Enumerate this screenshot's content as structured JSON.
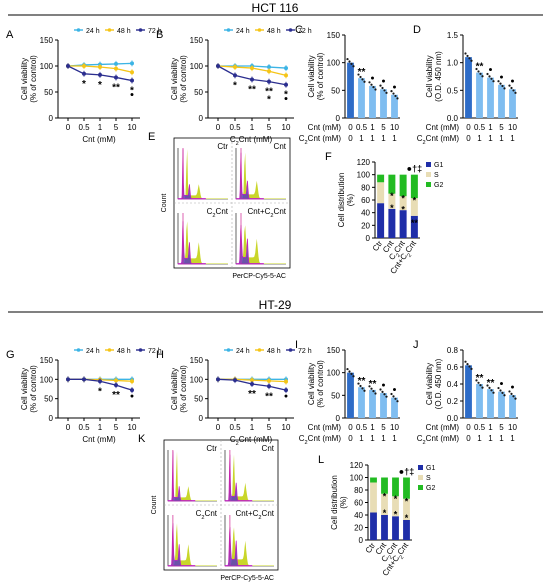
{
  "sections": [
    {
      "title": "HCT 116"
    },
    {
      "title": "HT-29"
    }
  ],
  "symbols": {
    "star": "*",
    "dstar": "**",
    "dot": "●",
    "dagger": "†",
    "ddagger": "‡"
  },
  "chart_data": [
    {
      "panel": "A",
      "type": "line",
      "title": "",
      "xlabel": "Cnt (mM)",
      "ylabel": "Cell viability (% of control)",
      "x": [
        "0",
        "0.5",
        "1",
        "5",
        "10"
      ],
      "ylim": [
        0,
        150
      ],
      "yticks": [
        0,
        50,
        100,
        150
      ],
      "series": [
        {
          "name": "24 h",
          "color": "#3cb4e5",
          "values": [
            100,
            102,
            103,
            104,
            105
          ]
        },
        {
          "name": "48 h",
          "color": "#f5c518",
          "values": [
            100,
            100,
            98,
            95,
            88
          ]
        },
        {
          "name": "72 h",
          "color": "#2b2e8f",
          "values": [
            100,
            85,
            83,
            78,
            72
          ]
        }
      ],
      "annotations": [
        {
          "x": "0.5",
          "text": "*"
        },
        {
          "x": "1",
          "text": "*"
        },
        {
          "x": "5",
          "text": "**"
        },
        {
          "x": "10",
          "text": "*"
        },
        {
          "x": "10",
          "text": "●"
        }
      ]
    },
    {
      "panel": "B",
      "type": "line",
      "title": "",
      "xlabel": "C2Cnt (mM)",
      "ylabel": "Cell viability (% of control)",
      "x": [
        "0",
        "0.5",
        "1",
        "5",
        "10"
      ],
      "ylim": [
        0,
        150
      ],
      "yticks": [
        0,
        50,
        100,
        150
      ],
      "series": [
        {
          "name": "24 h",
          "color": "#3cb4e5",
          "values": [
            100,
            100,
            100,
            98,
            96
          ]
        },
        {
          "name": "48 h",
          "color": "#f5c518",
          "values": [
            100,
            98,
            96,
            90,
            82
          ]
        },
        {
          "name": "72 h",
          "color": "#2b2e8f",
          "values": [
            100,
            82,
            74,
            70,
            64
          ]
        }
      ],
      "annotations": [
        {
          "x": "0.5",
          "text": "*"
        },
        {
          "x": "1",
          "text": "**"
        },
        {
          "x": "5",
          "text": "**"
        },
        {
          "x": "5",
          "text": "*"
        },
        {
          "x": "10",
          "text": "*"
        },
        {
          "x": "10",
          "text": "●"
        }
      ]
    },
    {
      "panel": "C",
      "type": "bar",
      "title": "",
      "ylabel": "Cell viability (% of control)",
      "row_labels": [
        "Cnt (mM)",
        "C2Cnt (mM)"
      ],
      "row_values": [
        [
          "0",
          "0.5",
          "1",
          "5",
          "10"
        ],
        [
          "0",
          "1",
          "1",
          "1",
          "1"
        ]
      ],
      "ylim": [
        0,
        150
      ],
      "yticks": [
        0,
        50,
        100,
        150
      ],
      "values": [
        100,
        72,
        58,
        52,
        42
      ],
      "annotations": [
        {
          "index": 1,
          "text": "**"
        },
        {
          "index": 2,
          "text": "●"
        },
        {
          "index": 3,
          "text": "●"
        },
        {
          "index": 4,
          "text": "●"
        }
      ]
    },
    {
      "panel": "D",
      "type": "bar",
      "title": "",
      "ylabel": "Cell viability (O.D. 450 nm)",
      "row_labels": [
        "Cnt (mM)",
        "C2Cnt (mM)"
      ],
      "row_values": [
        [
          "0",
          "0.5",
          "1",
          "5",
          "10"
        ],
        [
          "0",
          "1",
          "1",
          "1",
          "1"
        ]
      ],
      "ylim": [
        0,
        1.5
      ],
      "yticks": [
        "0.0",
        "0.5",
        "1.0",
        "1.5"
      ],
      "values": [
        1.1,
        0.82,
        0.73,
        0.6,
        0.52
      ],
      "annotations": [
        {
          "index": 1,
          "text": "**"
        },
        {
          "index": 2,
          "text": "●"
        },
        {
          "index": 3,
          "text": "●"
        },
        {
          "index": 4,
          "text": "●"
        }
      ]
    },
    {
      "panel": "E",
      "type": "histogram",
      "title": "",
      "xlabel": "PerCP-Cy5-5-AC",
      "ylabel": "Count",
      "quadrants": [
        "Ctr",
        "Cnt",
        "C2Cnt",
        "Cnt+C2Cnt"
      ]
    },
    {
      "panel": "F",
      "type": "bar",
      "stacked": true,
      "title": "",
      "ylabel": "Cell distribution (%)",
      "categories": [
        "Ctr",
        "Cnt",
        "C2Cnt",
        "Cnt+C2Cnt"
      ],
      "ylim": [
        0,
        120
      ],
      "yticks": [
        0,
        20,
        40,
        60,
        80,
        100,
        120
      ],
      "series": [
        {
          "name": "G1",
          "color": "#1f2ea8",
          "values": [
            55,
            46,
            44,
            35
          ]
        },
        {
          "name": "S",
          "color": "#e8ddb5",
          "values": [
            33,
            24,
            22,
            28
          ]
        },
        {
          "name": "G2",
          "color": "#22bb22",
          "values": [
            12,
            30,
            34,
            37
          ]
        }
      ],
      "annotations": [
        {
          "category": "Cnt",
          "text": "*"
        },
        {
          "category": "C2Cnt",
          "text": "*"
        },
        {
          "category": "Cnt+C2Cnt",
          "text": "**"
        },
        {
          "category": "Cnt+C2Cnt",
          "text": "●†‡"
        }
      ]
    },
    {
      "panel": "G",
      "type": "line",
      "title": "",
      "xlabel": "Cnt (mM)",
      "ylabel": "Cell viability (% of control)",
      "x": [
        "0",
        "0.5",
        "1",
        "5",
        "10"
      ],
      "ylim": [
        0,
        150
      ],
      "yticks": [
        0,
        50,
        100,
        150
      ],
      "series": [
        {
          "name": "24 h",
          "color": "#3cb4e5",
          "values": [
            100,
            100,
            100,
            100,
            100
          ]
        },
        {
          "name": "48 h",
          "color": "#f5c518",
          "values": [
            100,
            100,
            99,
            97,
            95
          ]
        },
        {
          "name": "72 h",
          "color": "#2b2e8f",
          "values": [
            100,
            100,
            95,
            85,
            72
          ]
        }
      ],
      "annotations": [
        {
          "x": "1",
          "text": "*"
        },
        {
          "x": "5",
          "text": "**"
        },
        {
          "x": "10",
          "text": "●"
        }
      ]
    },
    {
      "panel": "H",
      "type": "line",
      "title": "",
      "xlabel": "C2Cnt (mM)",
      "ylabel": "Cell viability (% of control)",
      "x": [
        "0",
        "0.5",
        "1",
        "5",
        "10"
      ],
      "ylim": [
        0,
        150
      ],
      "yticks": [
        0,
        50,
        100,
        150
      ],
      "series": [
        {
          "name": "24 h",
          "color": "#3cb4e5",
          "values": [
            100,
            100,
            100,
            100,
            100
          ]
        },
        {
          "name": "48 h",
          "color": "#f5c518",
          "values": [
            100,
            100,
            98,
            96,
            94
          ]
        },
        {
          "name": "72 h",
          "color": "#2b2e8f",
          "values": [
            100,
            98,
            88,
            82,
            72
          ]
        }
      ],
      "annotations": [
        {
          "x": "1",
          "text": "**"
        },
        {
          "x": "5",
          "text": "**"
        },
        {
          "x": "10",
          "text": "●"
        }
      ]
    },
    {
      "panel": "I",
      "type": "bar",
      "title": "",
      "ylabel": "Cell viability (% of control)",
      "row_labels": [
        "Cnt (mM)",
        "C2Cnt (mM)"
      ],
      "row_values": [
        [
          "0",
          "0.5",
          "1",
          "5",
          "10"
        ],
        [
          "0",
          "1",
          "1",
          "1",
          "1"
        ]
      ],
      "ylim": [
        0,
        150
      ],
      "yticks": [
        0,
        50,
        100,
        150
      ],
      "values": [
        100,
        68,
        62,
        55,
        45
      ],
      "annotations": [
        {
          "index": 1,
          "text": "**"
        },
        {
          "index": 2,
          "text": "**"
        },
        {
          "index": 3,
          "text": "●"
        },
        {
          "index": 4,
          "text": "●"
        }
      ]
    },
    {
      "panel": "J",
      "type": "bar",
      "title": "",
      "ylabel": "Cell viability (O.D. 450 nm)",
      "row_labels": [
        "Cnt (mM)",
        "C2Cnt (mM)"
      ],
      "row_values": [
        [
          "0",
          "0.5",
          "1",
          "5",
          "10"
        ],
        [
          "0",
          "1",
          "1",
          "1",
          "1"
        ]
      ],
      "ylim": [
        0,
        0.8
      ],
      "yticks": [
        "0.0",
        "0.2",
        "0.4",
        "0.6",
        "0.8"
      ],
      "values": [
        0.62,
        0.4,
        0.34,
        0.31,
        0.27
      ],
      "annotations": [
        {
          "index": 1,
          "text": "**"
        },
        {
          "index": 2,
          "text": "**"
        },
        {
          "index": 3,
          "text": "●"
        },
        {
          "index": 4,
          "text": "●"
        }
      ]
    },
    {
      "panel": "K",
      "type": "histogram",
      "title": "",
      "xlabel": "PerCP-Cy5-5-AC",
      "ylabel": "Count",
      "quadrants": [
        "Ctr",
        "Cnt",
        "C2Cnt",
        "Cnt+C2Cnt"
      ]
    },
    {
      "panel": "L",
      "type": "bar",
      "stacked": true,
      "title": "",
      "ylabel": "Cell distribution (%)",
      "categories": [
        "Ctr",
        "Cnt",
        "C2Cnt",
        "Cnt+C2Cnt"
      ],
      "ylim": [
        0,
        120
      ],
      "yticks": [
        0,
        20,
        40,
        60,
        80,
        100,
        120
      ],
      "series": [
        {
          "name": "G1",
          "color": "#1f2ea8",
          "values": [
            44,
            40,
            38,
            32
          ]
        },
        {
          "name": "S",
          "color": "#e8ddb5",
          "values": [
            48,
            34,
            32,
            34
          ]
        },
        {
          "name": "G2",
          "color": "#22bb22",
          "values": [
            8,
            26,
            30,
            34
          ]
        }
      ],
      "annotations": [
        {
          "category": "Cnt",
          "text": "*"
        },
        {
          "category": "C2Cnt",
          "text": "*"
        },
        {
          "category": "Cnt+C2Cnt",
          "text": "*"
        },
        {
          "category": "Cnt+C2Cnt",
          "text": "●†‡"
        }
      ]
    }
  ]
}
